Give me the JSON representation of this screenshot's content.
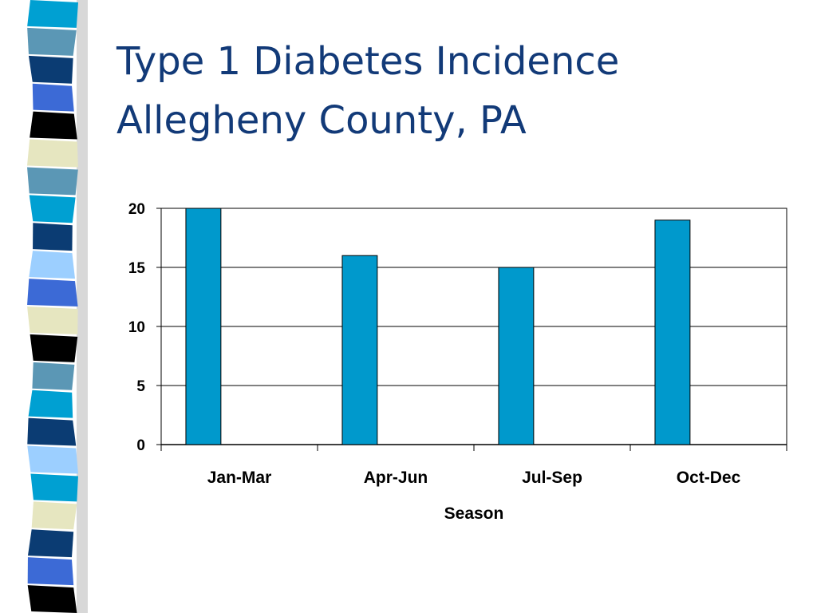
{
  "slide": {
    "title_line1": "Type 1 Diabetes Incidence",
    "title_line2": "Allegheny County, PA"
  },
  "colors": {
    "title": "#123a78",
    "bar": "#0099cc",
    "gridline": "#000000"
  },
  "stripe_colors": [
    "#00a0d2",
    "#5b97b5",
    "#0b3c73",
    "#3c6ad6",
    "#000000",
    "#e6e6c0",
    "#5b97b5",
    "#00a0d2",
    "#0b3c73",
    "#9ccfff",
    "#3c6ad6",
    "#e6e6c0",
    "#000000",
    "#5b97b5",
    "#00a0d2",
    "#0b3c73",
    "#9ccfff",
    "#00a0d2",
    "#e6e6c0",
    "#0b3c73",
    "#3c6ad6",
    "#000000"
  ],
  "chart_data": {
    "type": "bar",
    "categories": [
      "Jan-Mar",
      "Apr-Jun",
      "Jul-Sep",
      "Oct-Dec"
    ],
    "values": [
      20,
      16,
      15,
      19
    ],
    "xlabel": "Season",
    "ylabel": "",
    "ylim": [
      0,
      20
    ],
    "yticks": [
      0,
      5,
      10,
      15,
      20
    ],
    "grid": true,
    "legend": "none"
  }
}
